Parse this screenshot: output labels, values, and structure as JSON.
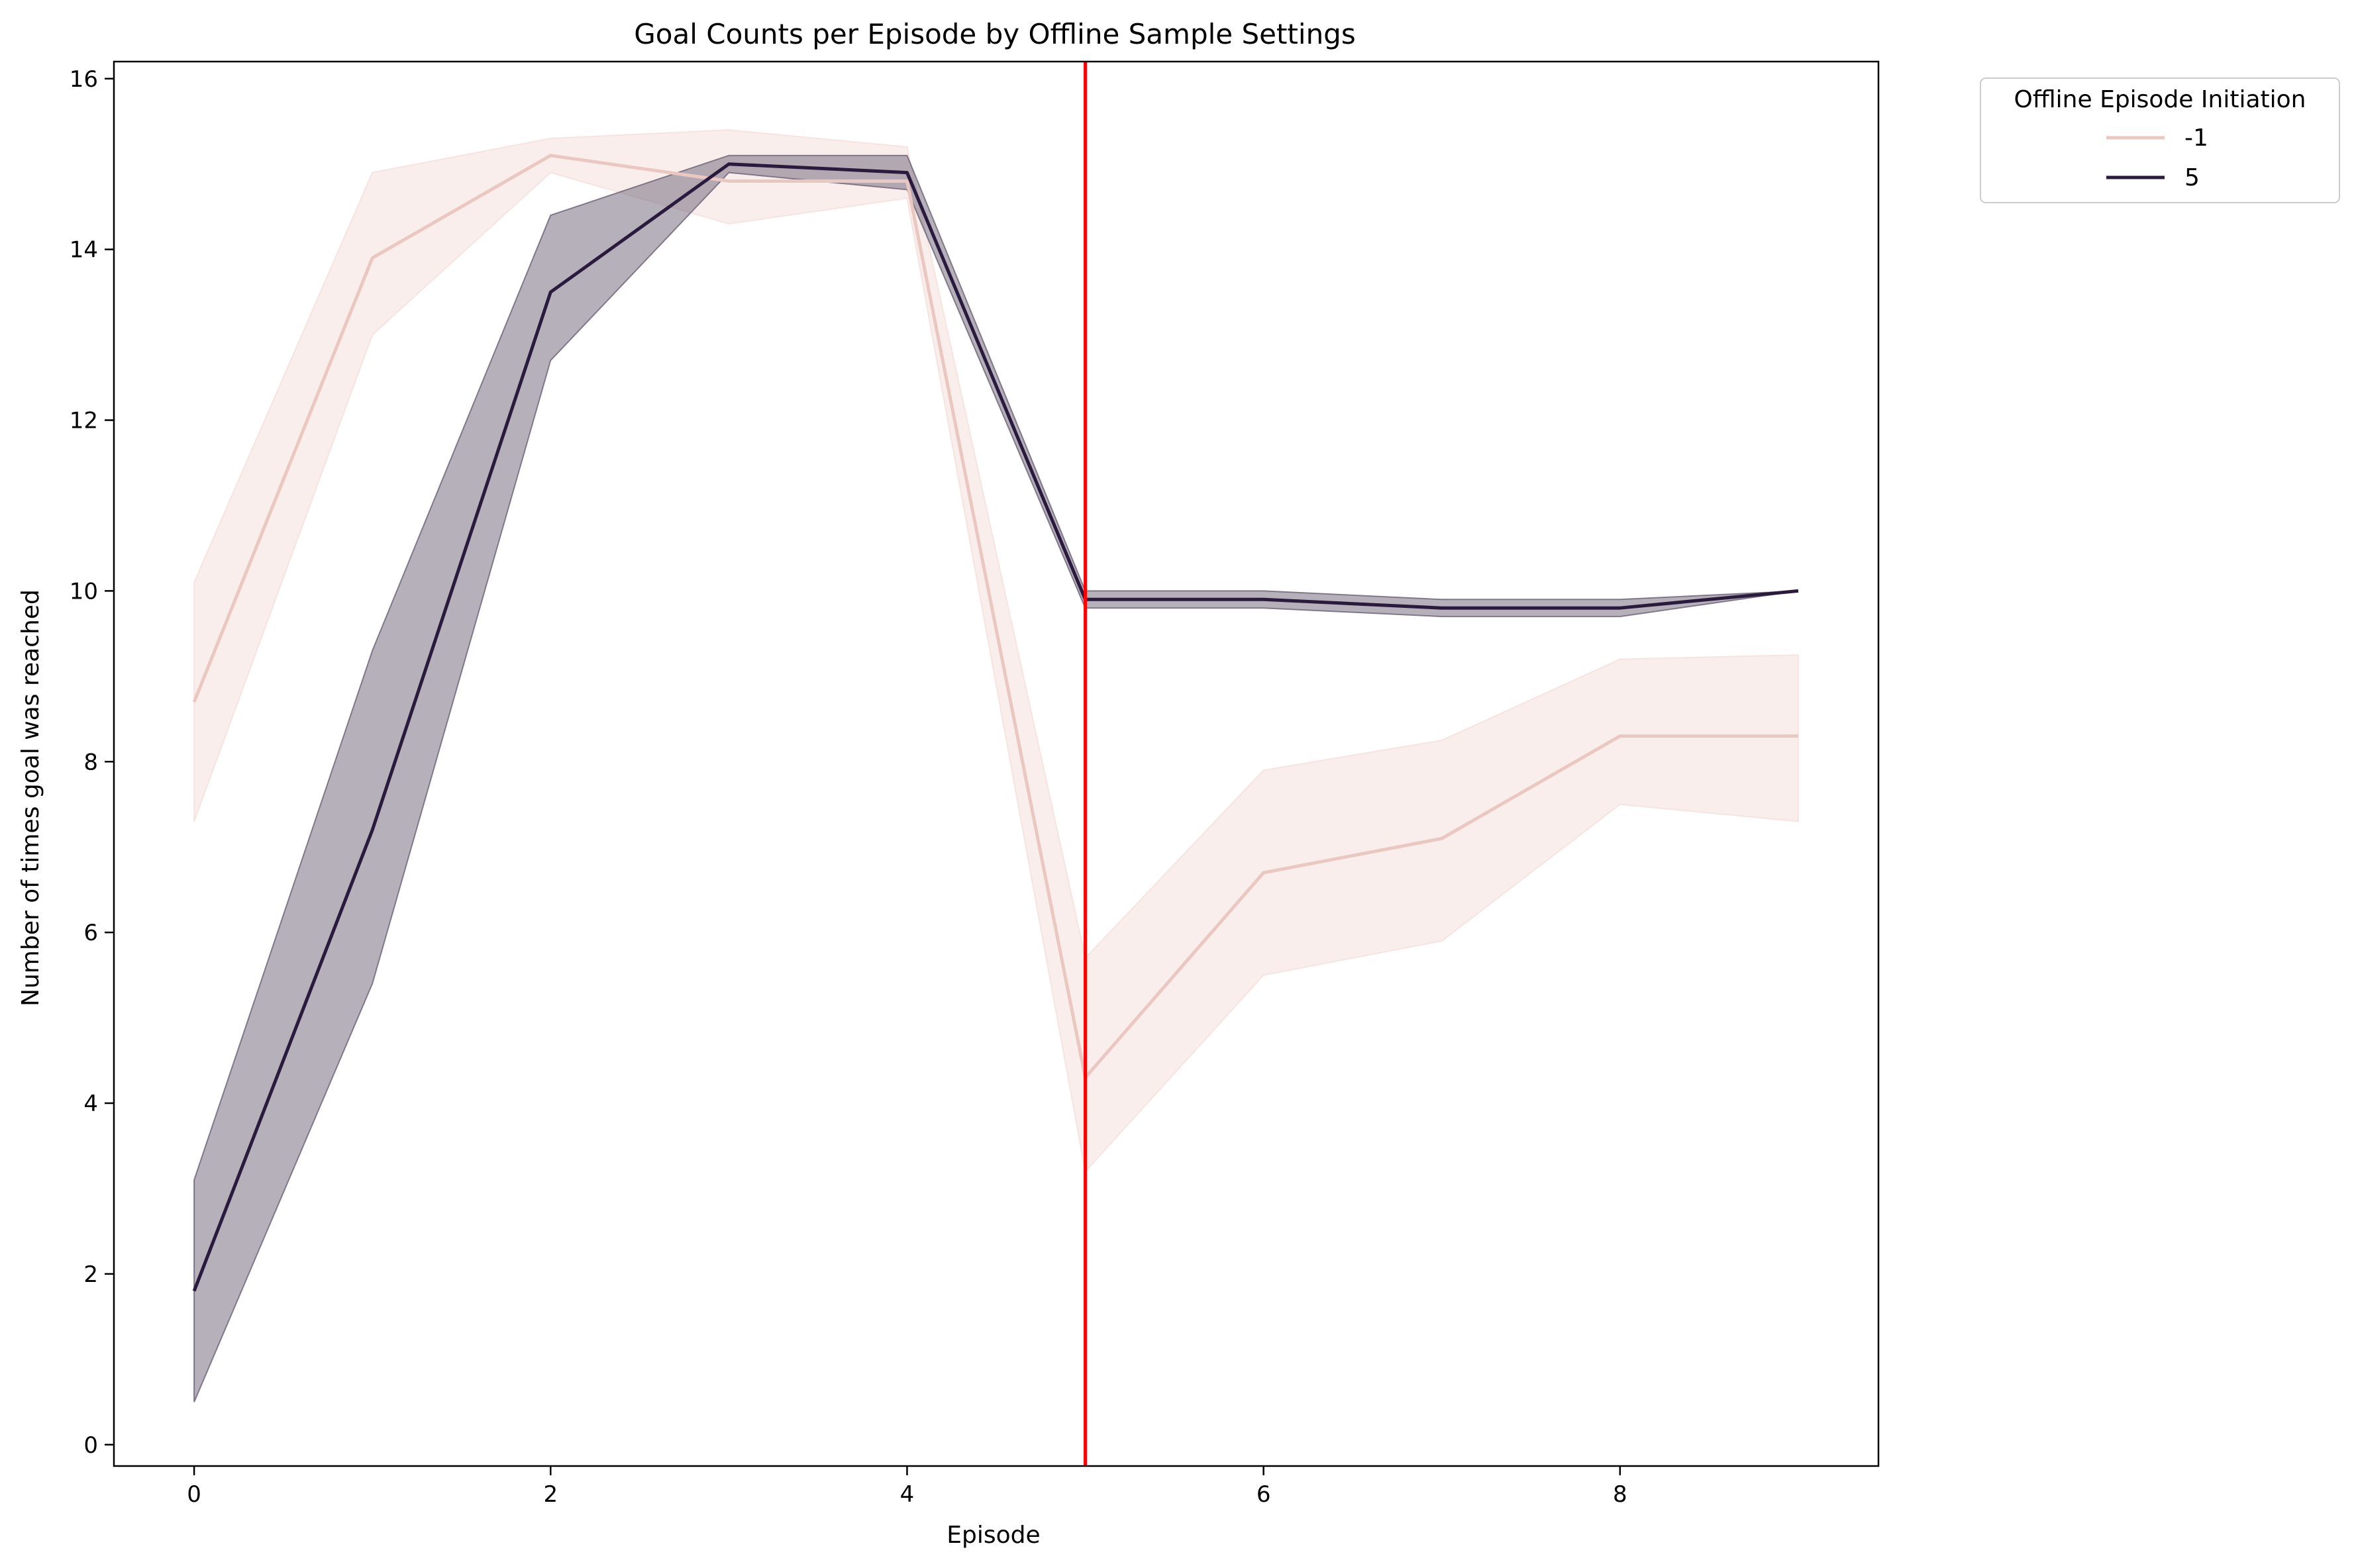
{
  "chart_data": {
    "type": "line",
    "title": "Goal Counts per Episode by Offline Sample Settings",
    "xlabel": "Episode",
    "ylabel": "Number of times goal was reached",
    "xlim": [
      -0.45,
      9.45
    ],
    "ylim": [
      -0.25,
      16.2
    ],
    "x_ticks": [
      0,
      2,
      4,
      6,
      8
    ],
    "y_ticks": [
      0,
      2,
      4,
      6,
      8,
      10,
      12,
      14,
      16
    ],
    "grid": false,
    "x": [
      0,
      1,
      2,
      3,
      4,
      5,
      6,
      7,
      8,
      9
    ],
    "series": [
      {
        "name": "-1",
        "color": "#ebc7c2",
        "band_color": "#f4e0dc",
        "values": [
          8.7,
          13.9,
          15.1,
          14.8,
          14.8,
          4.3,
          6.7,
          7.1,
          8.3,
          8.3
        ],
        "ci_lower": [
          7.3,
          13.0,
          14.9,
          14.3,
          14.6,
          3.2,
          5.5,
          5.9,
          7.5,
          7.3
        ],
        "ci_upper": [
          10.1,
          14.9,
          15.3,
          15.4,
          15.2,
          5.7,
          7.9,
          8.25,
          9.2,
          9.25
        ]
      },
      {
        "name": "5",
        "color": "#2a1a3d",
        "band_color": "#6b6176",
        "values": [
          1.8,
          7.2,
          13.5,
          15.0,
          14.9,
          9.9,
          9.9,
          9.8,
          9.8,
          10.0
        ],
        "ci_lower": [
          0.5,
          5.4,
          12.7,
          14.9,
          14.7,
          9.8,
          9.8,
          9.7,
          9.7,
          10.0
        ],
        "ci_upper": [
          3.1,
          9.3,
          14.4,
          15.1,
          15.1,
          10.0,
          10.0,
          9.9,
          9.9,
          10.0
        ]
      }
    ],
    "vline": {
      "x": 5,
      "color": "#ff0000"
    },
    "legend": {
      "title": "Offline Episode Initiation",
      "placement": "outside-top-right"
    }
  }
}
